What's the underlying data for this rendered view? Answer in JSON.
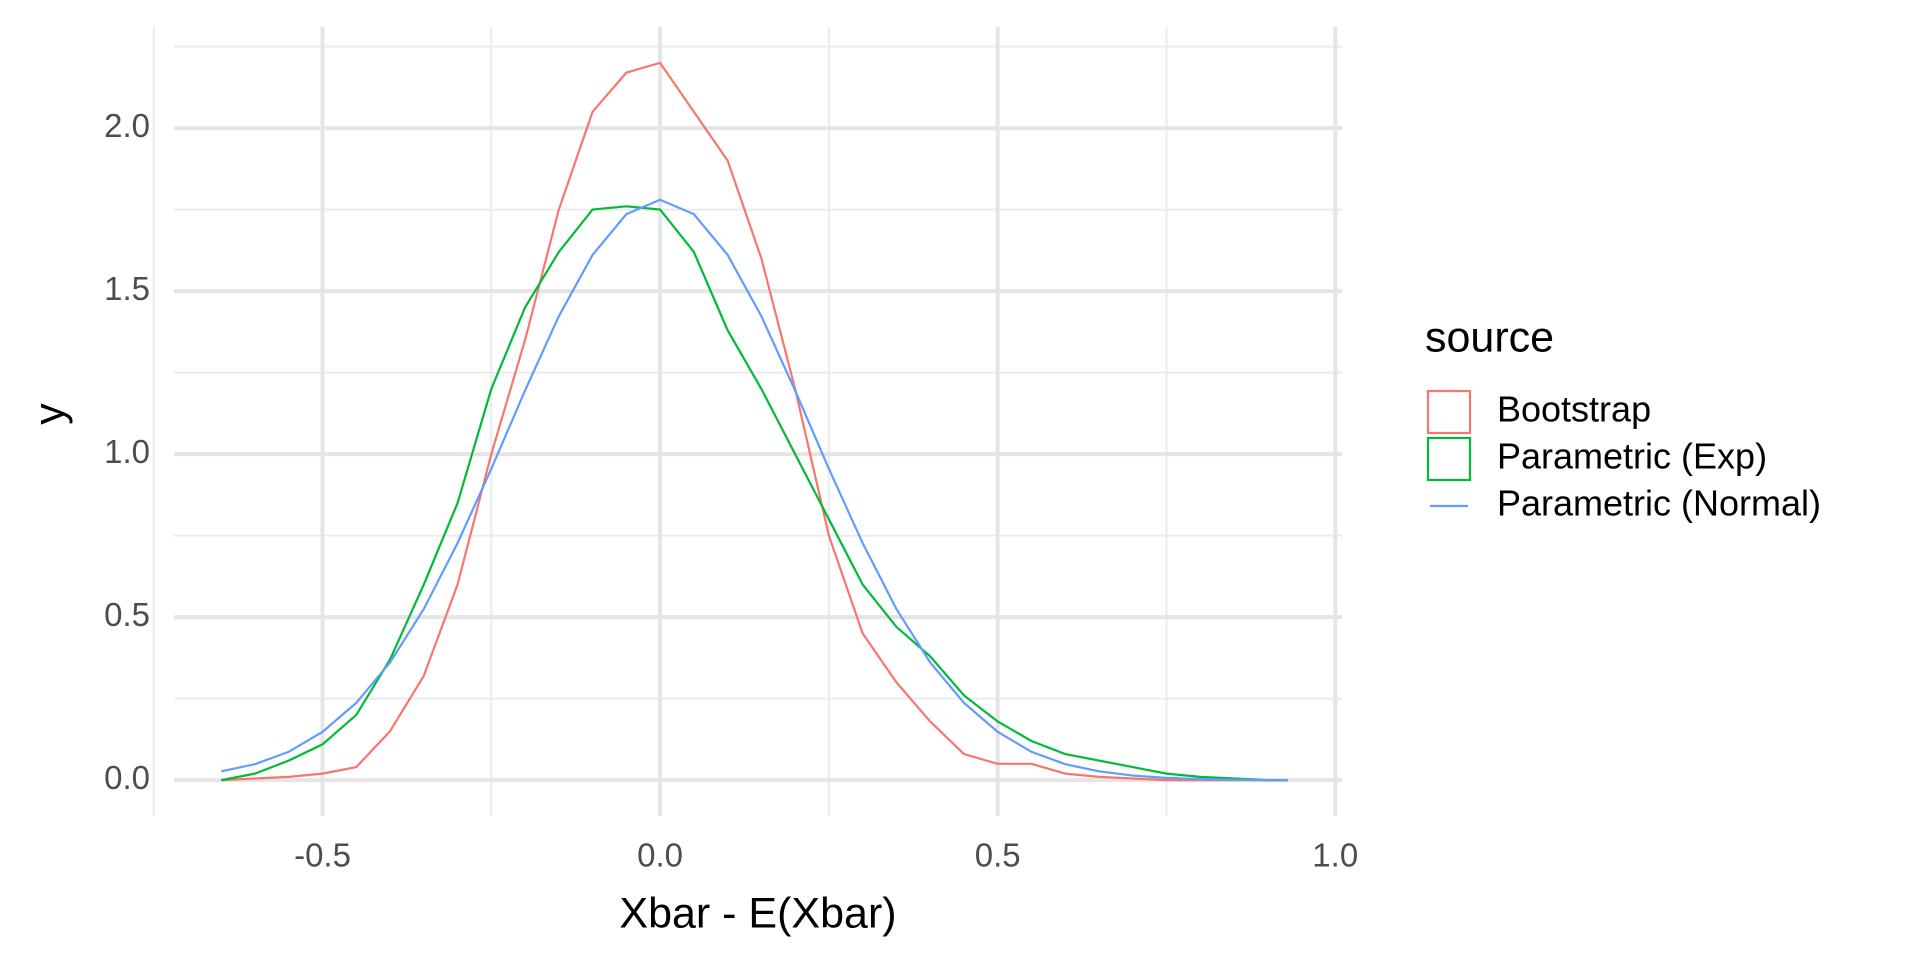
{
  "chart_data": {
    "type": "line",
    "x_label": "Xbar - E(Xbar)",
    "y_label": "y",
    "x": [
      -0.65,
      -0.6,
      -0.55,
      -0.5,
      -0.45,
      -0.4,
      -0.35,
      -0.3,
      -0.25,
      -0.2,
      -0.15,
      -0.1,
      -0.05,
      0,
      0.05,
      0.1,
      0.15,
      0.2,
      0.25,
      0.3,
      0.35,
      0.4,
      0.45,
      0.5,
      0.55,
      0.6,
      0.65,
      0.7,
      0.75,
      0.8,
      0.85,
      0.9,
      0.93
    ],
    "series": [
      {
        "name": "Bootstrap",
        "color": "#f8766d",
        "key": "box",
        "values": [
          0,
          0.005,
          0.01,
          0.02,
          0.04,
          0.15,
          0.32,
          0.6,
          1.0,
          1.35,
          1.75,
          2.05,
          2.17,
          2.2,
          2.05,
          1.9,
          1.6,
          1.2,
          0.75,
          0.45,
          0.3,
          0.18,
          0.08,
          0.05,
          0.05,
          0.02,
          0.01,
          0.005,
          0,
          0,
          0,
          0,
          0
        ]
      },
      {
        "name": "Parametric (Exp)",
        "color": "#00ba38",
        "key": "box",
        "values": [
          0,
          0.02,
          0.06,
          0.11,
          0.2,
          0.37,
          0.6,
          0.85,
          1.2,
          1.45,
          1.62,
          1.75,
          1.76,
          1.75,
          1.62,
          1.38,
          1.2,
          1.0,
          0.8,
          0.6,
          0.47,
          0.38,
          0.26,
          0.18,
          0.12,
          0.08,
          0.06,
          0.04,
          0.02,
          0.01,
          0.005,
          0,
          0
        ]
      },
      {
        "name": "Parametric (Normal)",
        "color": "#619cff",
        "key": "line",
        "values": [
          0.027,
          0.049,
          0.087,
          0.148,
          0.237,
          0.361,
          0.525,
          0.727,
          0.955,
          1.195,
          1.423,
          1.611,
          1.736,
          1.78,
          1.736,
          1.611,
          1.423,
          1.195,
          0.955,
          0.727,
          0.525,
          0.361,
          0.237,
          0.148,
          0.087,
          0.049,
          0.027,
          0.014,
          0.007,
          0.003,
          0.001,
          0,
          0
        ]
      }
    ],
    "legend_title": "source",
    "legend_position": "right",
    "xlim": [
      -0.72,
      1.01
    ],
    "ylim": [
      -0.11,
      2.31
    ],
    "xticks": [
      {
        "value": -0.5,
        "label": "-0.5"
      },
      {
        "value": 0,
        "label": "0.0"
      },
      0.5,
      {
        "value": 1,
        "label": "1.0"
      }
    ],
    "yticks": [
      {
        "value": 0,
        "label": "0.0"
      },
      0.5,
      {
        "value": 1,
        "label": "1.0"
      },
      1.5,
      {
        "value": 2,
        "label": "2.0"
      }
    ],
    "xticks_minor": [
      -0.75,
      -0.25,
      0.25,
      0.75
    ],
    "yticks_minor": [
      0.25,
      0.75,
      1.25,
      1.75,
      2.25
    ],
    "grid": true
  }
}
